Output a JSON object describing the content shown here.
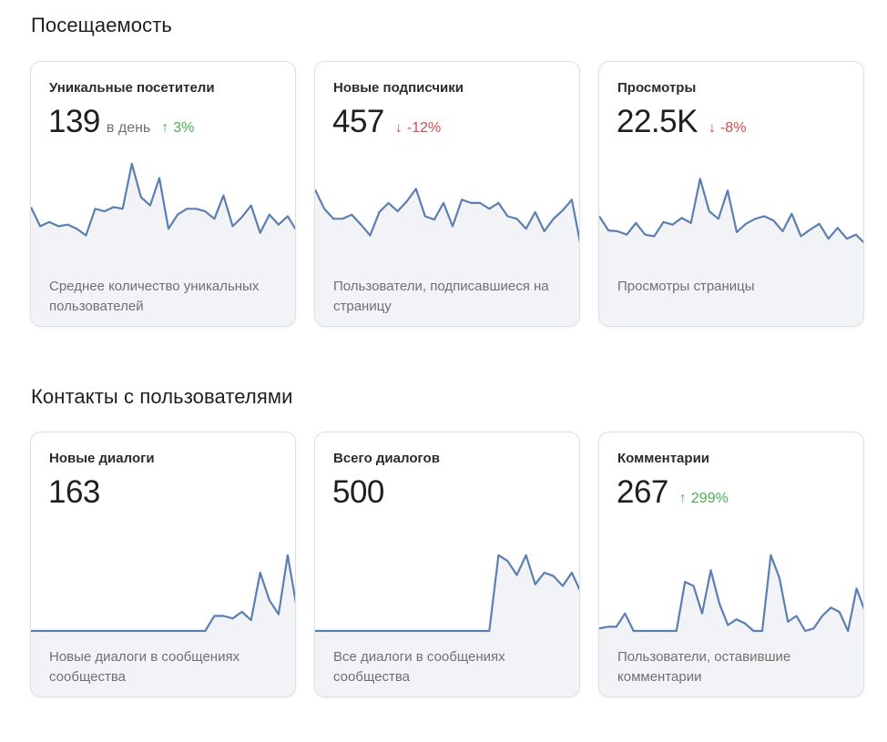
{
  "sections": [
    {
      "title": "Посещаемость",
      "cards": [
        {
          "title": "Уникальные посетители",
          "value": "139",
          "unit": "в день",
          "trend": {
            "direction": "up",
            "icon": "arrow-up-icon",
            "text": "3%"
          },
          "description": "Среднее количество уникальных пользователей"
        },
        {
          "title": "Новые подписчики",
          "value": "457",
          "unit": "",
          "trend": {
            "direction": "down",
            "icon": "arrow-down-icon",
            "text": "-12%"
          },
          "description": "Пользователи, подписавшиеся на страницу"
        },
        {
          "title": "Просмотры",
          "value": "22.5K",
          "unit": "",
          "trend": {
            "direction": "down",
            "icon": "arrow-down-icon",
            "text": "-8%"
          },
          "description": "Просмотры страницы"
        }
      ]
    },
    {
      "title": "Контакты с пользователями",
      "cards": [
        {
          "title": "Новые диалоги",
          "value": "163",
          "unit": "",
          "trend": null,
          "description": "Новые диалоги в сообщениях сообщества"
        },
        {
          "title": "Всего диалогов",
          "value": "500",
          "unit": "",
          "trend": null,
          "description": "Все диалоги в сообщениях сообщества"
        },
        {
          "title": "Комментарии",
          "value": "267",
          "unit": "",
          "trend": {
            "direction": "up",
            "icon": "arrow-up-icon",
            "text": "299%"
          },
          "description": "Пользователи, оставившие комментарии"
        }
      ]
    }
  ],
  "colors": {
    "line": "#5b7fb2",
    "fill": "#f2f3f7",
    "up": "#4caf50",
    "down": "#d14b4b"
  },
  "chart_data": [
    {
      "type": "area",
      "series": [
        {
          "values": [
            6.4,
            4.1,
            4.6,
            4.1,
            4.3,
            3.8,
            3.0,
            6.2,
            5.9,
            6.4,
            6.2,
            11.6,
            7.6,
            6.6,
            9.9,
            3.8,
            5.5,
            6.2,
            6.2,
            5.9,
            5.0,
            7.8,
            4.1,
            5.2,
            6.6,
            3.3,
            5.5,
            4.3,
            5.3,
            3.5
          ]
        }
      ],
      "ylim": [
        0,
        14
      ]
    },
    {
      "type": "area",
      "series": [
        {
          "values": [
            8.5,
            6.2,
            5.0,
            5.0,
            5.5,
            4.3,
            3.0,
            5.8,
            6.9,
            5.9,
            7.1,
            8.6,
            5.3,
            4.9,
            6.9,
            4.1,
            7.3,
            6.9,
            6.9,
            6.2,
            6.9,
            5.3,
            5.0,
            3.8,
            5.8,
            3.5,
            5.0,
            6.0,
            7.3,
            1.6
          ]
        }
      ],
      "ylim": [
        0,
        14
      ]
    },
    {
      "type": "area",
      "series": [
        {
          "values": [
            5.3,
            3.6,
            3.5,
            3.1,
            4.5,
            3.1,
            2.9,
            4.6,
            4.3,
            5.1,
            4.5,
            9.8,
            5.9,
            5.0,
            8.4,
            3.4,
            4.4,
            5.0,
            5.3,
            4.8,
            3.5,
            5.6,
            2.9,
            3.7,
            4.4,
            2.6,
            3.9,
            2.6,
            3.1,
            2.0
          ]
        }
      ],
      "ylim": [
        0,
        14
      ]
    },
    {
      "type": "area",
      "series": [
        {
          "values": [
            0,
            0,
            0,
            0,
            0,
            0,
            0,
            0,
            0,
            0,
            0,
            0,
            0,
            0,
            0,
            0,
            0,
            0,
            0,
            0,
            1.8,
            1.8,
            1.5,
            2.3,
            1.3,
            7.0,
            3.7,
            2.0,
            9.1,
            2.7
          ]
        }
      ],
      "ylim": [
        0,
        14
      ]
    },
    {
      "type": "area",
      "series": [
        {
          "values": [
            0,
            0,
            0,
            0,
            0,
            0,
            0,
            0,
            0,
            0,
            0,
            0,
            0,
            0,
            0,
            0,
            0,
            0,
            0,
            0,
            9.1,
            8.4,
            6.7,
            9.1,
            5.6,
            7.0,
            6.6,
            5.4,
            7.0,
            4.6
          ]
        }
      ],
      "ylim": [
        0,
        14
      ]
    },
    {
      "type": "area",
      "series": [
        {
          "values": [
            0.3,
            0.5,
            0.5,
            2.1,
            0,
            0,
            0,
            0,
            0,
            0,
            5.9,
            5.4,
            2.1,
            7.3,
            3.3,
            0.7,
            1.4,
            0.9,
            0,
            0,
            9.1,
            6.4,
            1.1,
            1.8,
            0,
            0.3,
            1.8,
            2.8,
            2.3,
            0,
            5.1,
            2.3
          ]
        }
      ],
      "ylim": [
        0,
        14
      ]
    }
  ]
}
